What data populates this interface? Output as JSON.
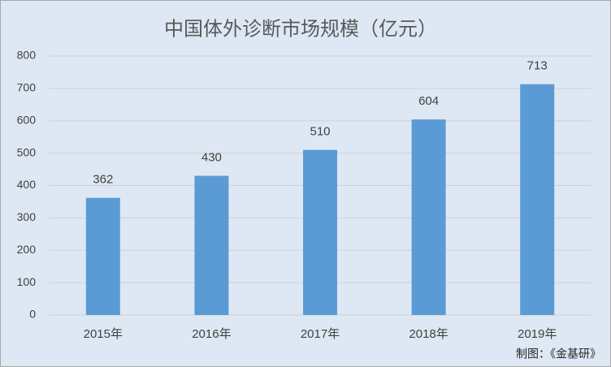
{
  "chart_data": {
    "type": "bar",
    "title": "中国体外诊断市场规模（亿元）",
    "categories": [
      "2015年",
      "2016年",
      "2017年",
      "2018年",
      "2019年"
    ],
    "values": [
      362,
      430,
      510,
      604,
      713
    ],
    "color": "#5b9bd5",
    "ylim": [
      0,
      800
    ],
    "yticks": [
      0,
      100,
      200,
      300,
      400,
      500,
      600,
      700,
      800
    ],
    "grid": true,
    "source": "制图：《金基研》"
  }
}
